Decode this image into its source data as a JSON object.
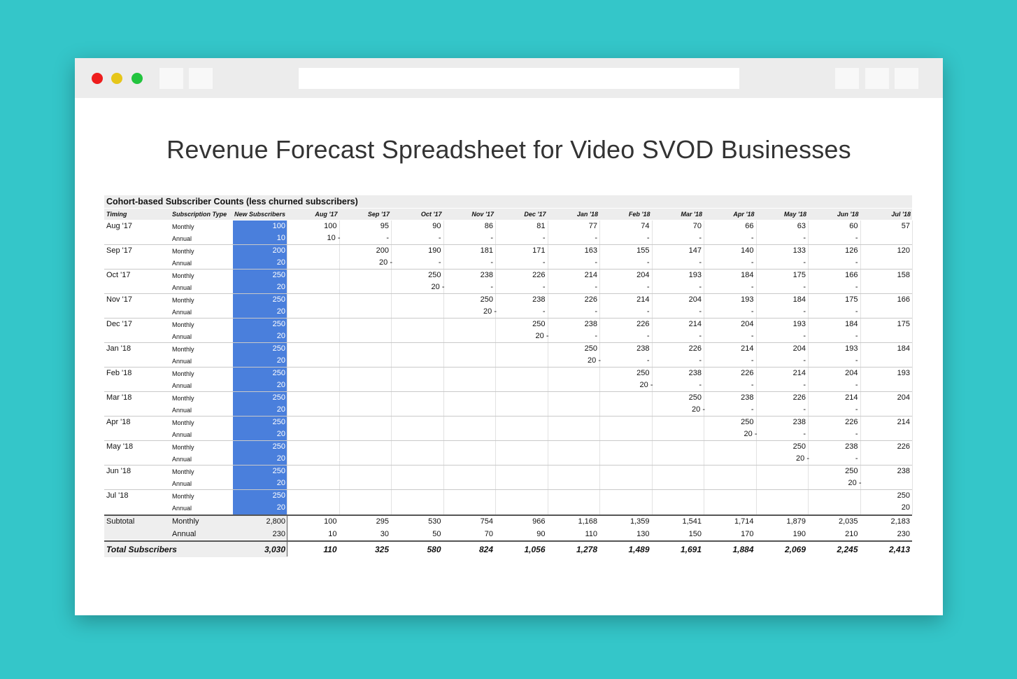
{
  "page_title": "Revenue Forecast Spreadsheet for Video SVOD Businesses",
  "sheet": {
    "title": "Cohort-based Subscriber Counts (less churned subscribers)",
    "headers": {
      "timing": "Timing",
      "type": "Subscription Type",
      "new": "New Subscribers",
      "months": [
        "Aug '17",
        "Sep '17",
        "Oct '17",
        "Nov '17",
        "Dec '17",
        "Jan '18",
        "Feb '18",
        "Mar '18",
        "Apr '18",
        "May '18",
        "Jun '18",
        "Jul '18"
      ]
    },
    "cohorts": [
      {
        "timing": "Aug '17",
        "monthly_label": "Monthly",
        "annual_label": "Annual",
        "new_monthly": "100",
        "new_annual": "10",
        "monthly": [
          "100",
          "95",
          "90",
          "86",
          "81",
          "77",
          "74",
          "70",
          "66",
          "63",
          "60",
          "57"
        ],
        "annual": [
          "10 -",
          "-",
          "-",
          "-",
          "-",
          "-",
          "-",
          "-",
          "-",
          "-",
          "-",
          ""
        ]
      },
      {
        "timing": "Sep '17",
        "monthly_label": "Monthly",
        "annual_label": "Annual",
        "new_monthly": "200",
        "new_annual": "20",
        "monthly": [
          "",
          "200",
          "190",
          "181",
          "171",
          "163",
          "155",
          "147",
          "140",
          "133",
          "126",
          "120"
        ],
        "annual": [
          "",
          "20 -",
          "-",
          "-",
          "-",
          "-",
          "-",
          "-",
          "-",
          "-",
          "-",
          ""
        ]
      },
      {
        "timing": "Oct '17",
        "monthly_label": "Monthly",
        "annual_label": "Annual",
        "new_monthly": "250",
        "new_annual": "20",
        "monthly": [
          "",
          "",
          "250",
          "238",
          "226",
          "214",
          "204",
          "193",
          "184",
          "175",
          "166",
          "158"
        ],
        "annual": [
          "",
          "",
          "20 -",
          "-",
          "-",
          "-",
          "-",
          "-",
          "-",
          "-",
          "-",
          ""
        ]
      },
      {
        "timing": "Nov '17",
        "monthly_label": "Monthly",
        "annual_label": "Annual",
        "new_monthly": "250",
        "new_annual": "20",
        "monthly": [
          "",
          "",
          "",
          "250",
          "238",
          "226",
          "214",
          "204",
          "193",
          "184",
          "175",
          "166"
        ],
        "annual": [
          "",
          "",
          "",
          "20 -",
          "-",
          "-",
          "-",
          "-",
          "-",
          "-",
          "-",
          ""
        ]
      },
      {
        "timing": "Dec '17",
        "monthly_label": "Monthly",
        "annual_label": "Annual",
        "new_monthly": "250",
        "new_annual": "20",
        "monthly": [
          "",
          "",
          "",
          "",
          "250",
          "238",
          "226",
          "214",
          "204",
          "193",
          "184",
          "175"
        ],
        "annual": [
          "",
          "",
          "",
          "",
          "20 -",
          "-",
          "-",
          "-",
          "-",
          "-",
          "-",
          ""
        ]
      },
      {
        "timing": "Jan '18",
        "monthly_label": "Monthly",
        "annual_label": "Annual",
        "new_monthly": "250",
        "new_annual": "20",
        "monthly": [
          "",
          "",
          "",
          "",
          "",
          "250",
          "238",
          "226",
          "214",
          "204",
          "193",
          "184"
        ],
        "annual": [
          "",
          "",
          "",
          "",
          "",
          "20 -",
          "-",
          "-",
          "-",
          "-",
          "-",
          ""
        ]
      },
      {
        "timing": "Feb '18",
        "monthly_label": "Monthly",
        "annual_label": "Annual",
        "new_monthly": "250",
        "new_annual": "20",
        "monthly": [
          "",
          "",
          "",
          "",
          "",
          "",
          "250",
          "238",
          "226",
          "214",
          "204",
          "193"
        ],
        "annual": [
          "",
          "",
          "",
          "",
          "",
          "",
          "20 -",
          "-",
          "-",
          "-",
          "-",
          ""
        ]
      },
      {
        "timing": "Mar '18",
        "monthly_label": "Monthly",
        "annual_label": "Annual",
        "new_monthly": "250",
        "new_annual": "20",
        "monthly": [
          "",
          "",
          "",
          "",
          "",
          "",
          "",
          "250",
          "238",
          "226",
          "214",
          "204"
        ],
        "annual": [
          "",
          "",
          "",
          "",
          "",
          "",
          "",
          "20 -",
          "-",
          "-",
          "-",
          ""
        ]
      },
      {
        "timing": "Apr '18",
        "monthly_label": "Monthly",
        "annual_label": "Annual",
        "new_monthly": "250",
        "new_annual": "20",
        "monthly": [
          "",
          "",
          "",
          "",
          "",
          "",
          "",
          "",
          "250",
          "238",
          "226",
          "214"
        ],
        "annual": [
          "",
          "",
          "",
          "",
          "",
          "",
          "",
          "",
          "20 -",
          "-",
          "-",
          ""
        ]
      },
      {
        "timing": "May '18",
        "monthly_label": "Monthly",
        "annual_label": "Annual",
        "new_monthly": "250",
        "new_annual": "20",
        "monthly": [
          "",
          "",
          "",
          "",
          "",
          "",
          "",
          "",
          "",
          "250",
          "238",
          "226"
        ],
        "annual": [
          "",
          "",
          "",
          "",
          "",
          "",
          "",
          "",
          "",
          "20 -",
          "-",
          ""
        ]
      },
      {
        "timing": "Jun '18",
        "monthly_label": "Monthly",
        "annual_label": "Annual",
        "new_monthly": "250",
        "new_annual": "20",
        "monthly": [
          "",
          "",
          "",
          "",
          "",
          "",
          "",
          "",
          "",
          "",
          "250",
          "238"
        ],
        "annual": [
          "",
          "",
          "",
          "",
          "",
          "",
          "",
          "",
          "",
          "",
          "20 -",
          ""
        ]
      },
      {
        "timing": "Jul '18",
        "monthly_label": "Monthly",
        "annual_label": "Annual",
        "new_monthly": "250",
        "new_annual": "20",
        "monthly": [
          "",
          "",
          "",
          "",
          "",
          "",
          "",
          "",
          "",
          "",
          "",
          "250"
        ],
        "annual": [
          "",
          "",
          "",
          "",
          "",
          "",
          "",
          "",
          "",
          "",
          "",
          "20"
        ]
      }
    ],
    "subtotal": {
      "label": "Subtotal",
      "monthly_label": "Monthly",
      "annual_label": "Annual",
      "new_monthly": "2,800",
      "new_annual": "230",
      "monthly": [
        "100",
        "295",
        "530",
        "754",
        "966",
        "1,168",
        "1,359",
        "1,541",
        "1,714",
        "1,879",
        "2,035",
        "2,183"
      ],
      "annual": [
        "10",
        "30",
        "50",
        "70",
        "90",
        "110",
        "130",
        "150",
        "170",
        "190",
        "210",
        "230"
      ]
    },
    "total": {
      "label": "Total Subscribers",
      "new": "3,030",
      "values": [
        "110",
        "325",
        "580",
        "824",
        "1,056",
        "1,278",
        "1,489",
        "1,691",
        "1,884",
        "2,069",
        "2,245",
        "2,413"
      ]
    }
  }
}
